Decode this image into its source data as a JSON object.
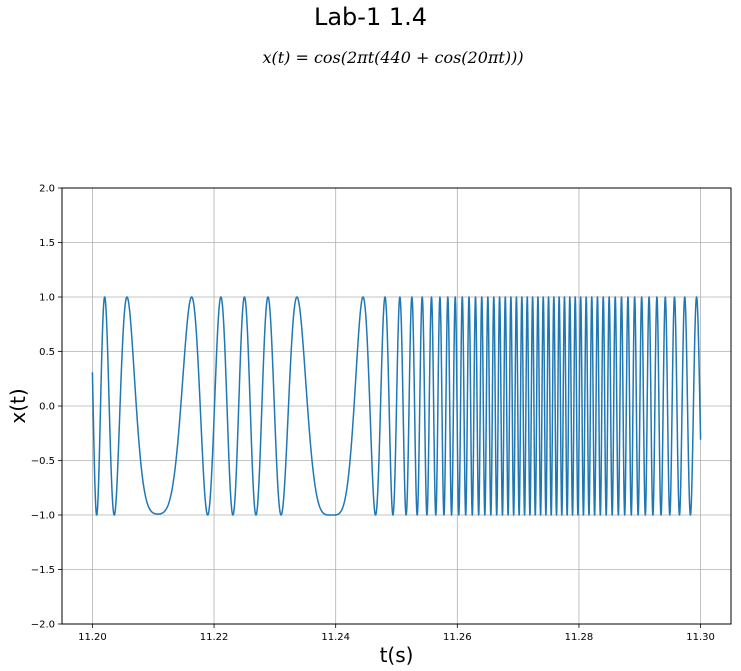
{
  "chart_data": {
    "type": "line",
    "title": "Lab-1 1.4",
    "subtitle": "x(t) = cos(2πt(440 + cos(20πt)))",
    "xlabel": "t(s)",
    "ylabel": "x(t)",
    "xlim": [
      11.195,
      11.305
    ],
    "ylim": [
      -2.0,
      2.0
    ],
    "x_ticks": [
      "11.20",
      "11.22",
      "11.24",
      "11.26",
      "11.28",
      "11.30"
    ],
    "x_tick_values": [
      11.2,
      11.22,
      11.24,
      11.26,
      11.28,
      11.3
    ],
    "y_ticks": [
      "−2.0",
      "−1.5",
      "−1.0",
      "−0.5",
      "0.0",
      "0.5",
      "1.0",
      "1.5",
      "2.0"
    ],
    "y_tick_values": [
      -2.0,
      -1.5,
      -1.0,
      -0.5,
      0.0,
      0.5,
      1.0,
      1.5,
      2.0
    ],
    "grid": true,
    "series": [
      {
        "function": "cos(2*pi*t*(440 + cos(20*pi*t)))",
        "t_start": 11.2,
        "t_end": 11.3,
        "color": "#1f77b4"
      }
    ]
  }
}
